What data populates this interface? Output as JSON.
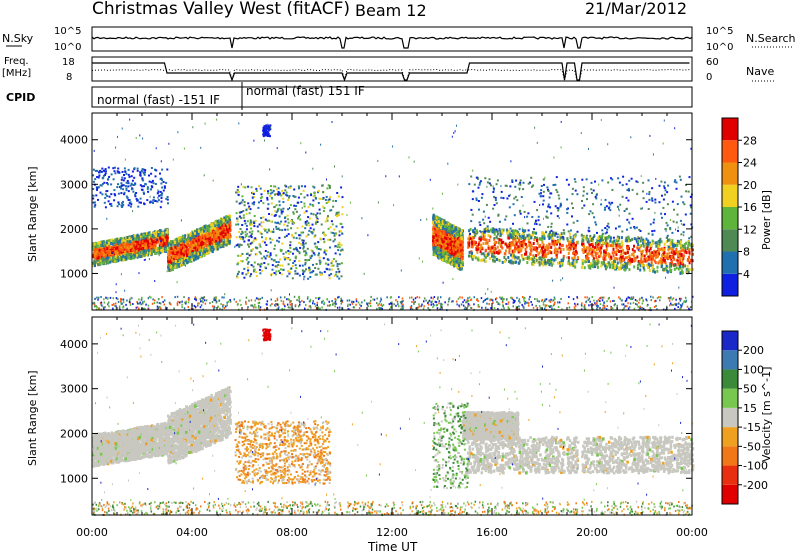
{
  "header": {
    "station": "Christmas Valley West (fitACF)",
    "beam": "Beam 12",
    "date": "21/Mar/2012"
  },
  "strips": {
    "nsky": {
      "label": "N.Sky",
      "tick_top": "10^5",
      "tick_bottom": "10^0",
      "right_label": "N.Search",
      "right_tick_top": "10^5",
      "right_tick_bottom": "10^0"
    },
    "freq": {
      "label_line1": "Freq.",
      "label_line2": "[MHz]",
      "tick_top": "18",
      "tick_bottom": "8",
      "right_label": "Nave",
      "right_tick_top": "60",
      "right_tick_bottom": "0"
    },
    "cpid": {
      "label": "CPID",
      "modes": [
        {
          "start_hour": 0,
          "end_hour": 6,
          "text": "normal (fast) -151 IF"
        },
        {
          "start_hour": 6,
          "end_hour": 24,
          "text": "normal (fast) 151 IF"
        }
      ]
    }
  },
  "chart_data": [
    {
      "type": "heatmap",
      "name": "power",
      "xlabel": "",
      "ylabel": "Slant Range [km]",
      "xlim": [
        0,
        24
      ],
      "ylim": [
        180,
        4600
      ],
      "yticks": [
        1000,
        2000,
        3000,
        4000
      ],
      "colorbar": {
        "label": "Power [dB]",
        "ticks": [
          "4",
          "8",
          "12",
          "16",
          "20",
          "24",
          "28"
        ],
        "colors": [
          "#1020e0",
          "#2070b0",
          "#4f8a55",
          "#5fb43c",
          "#f0d020",
          "#f09010",
          "#ff5a10",
          "#e00000"
        ]
      }
    },
    {
      "type": "heatmap",
      "name": "velocity",
      "xlabel": "Time UT",
      "ylabel": "Slant Range [km]",
      "xlim": [
        0,
        24
      ],
      "ylim": [
        180,
        4600
      ],
      "yticks": [
        1000,
        2000,
        3000,
        4000
      ],
      "xticks": [
        "00:00",
        "04:00",
        "08:00",
        "12:00",
        "16:00",
        "20:00",
        "00:00"
      ],
      "colorbar": {
        "label": "Velocity [m s^-1]",
        "ticks": [
          "200",
          "100",
          "50",
          "15",
          "-15",
          "-50",
          "-100",
          "-200"
        ],
        "colors": [
          "#1a28c8",
          "#3e7ab2",
          "#3a8a3a",
          "#78c850",
          "#c8c8c0",
          "#f0a020",
          "#f07818",
          "#e83010",
          "#e00000"
        ]
      }
    }
  ]
}
